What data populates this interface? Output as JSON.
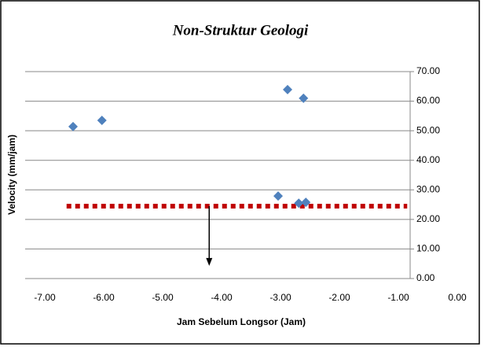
{
  "chart_data": {
    "type": "scatter",
    "title": "Non-Struktur Geologi",
    "x_label": "Jam Sebelum Longsor (Jam)",
    "y_label": "Velocity (mm/jam)",
    "series": [
      {
        "color": "#4f81bd",
        "x": [
          -6.52,
          -6.03,
          -3.04,
          -2.88,
          -2.69,
          -2.61,
          -2.57
        ],
        "values": [
          51.4,
          53.5,
          27.9,
          63.9,
          25.5,
          61.0,
          25.8
        ]
      }
    ],
    "threshold": {
      "color": "#c00000",
      "y": 24.5,
      "x": [
        -6.63,
        -0.85
      ]
    },
    "arrow": {
      "x": -4.21,
      "y": [
        24.5,
        4.3
      ]
    },
    "xlim": [
      -7,
      0
    ],
    "xticks": [
      {
        "value": -7,
        "label": "-7.00"
      },
      {
        "value": -6,
        "label": "-6.00"
      },
      {
        "value": -5,
        "label": "-5.00"
      },
      {
        "value": -4,
        "label": "-4.00"
      },
      {
        "value": -3,
        "label": "-3.00"
      },
      {
        "value": -2,
        "label": "-2.00"
      },
      {
        "value": -1,
        "label": "-1.00"
      },
      {
        "value": 0,
        "label": "0.00"
      }
    ],
    "ylim": [
      0,
      70
    ],
    "yticks": [
      {
        "value": 0,
        "label": "0.00"
      },
      {
        "value": 10,
        "label": "10.00"
      },
      {
        "value": 20,
        "label": "20.00"
      },
      {
        "value": 30,
        "label": "30.00"
      },
      {
        "value": 40,
        "label": "40.00"
      },
      {
        "value": 50,
        "label": "50.00"
      },
      {
        "value": 60,
        "label": "60.00"
      },
      {
        "value": 70,
        "label": "70.00"
      }
    ],
    "grid": true
  }
}
